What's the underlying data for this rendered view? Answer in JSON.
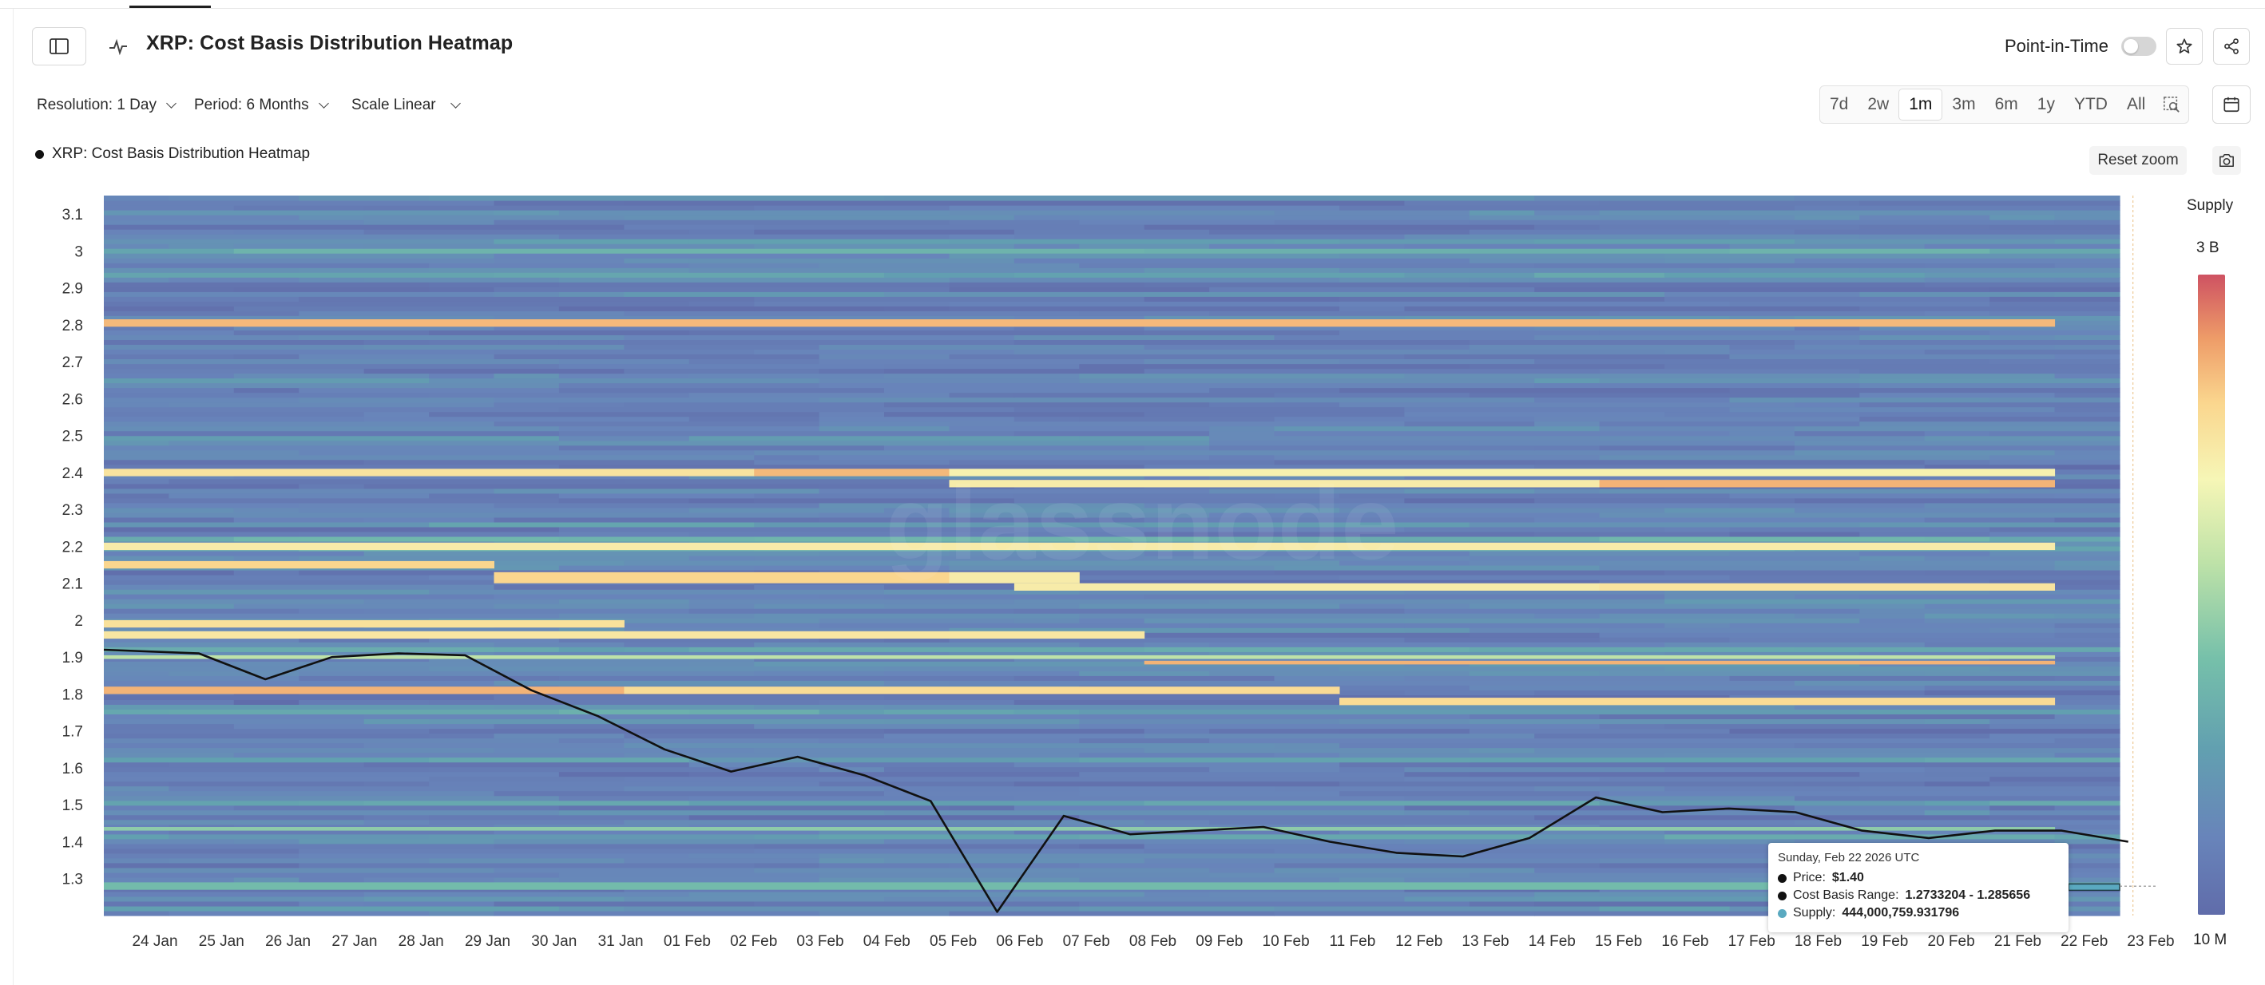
{
  "header": {
    "title": "XRP: Cost Basis Distribution Heatmap",
    "point_in_time_label": "Point-in-Time",
    "point_in_time_on": false
  },
  "controls": {
    "resolution": "Resolution: 1 Day",
    "period": "Period: 6 Months",
    "scale": "Scale Linear",
    "ranges": [
      "7d",
      "2w",
      "1m",
      "3m",
      "6m",
      "1y",
      "YTD",
      "All"
    ],
    "active_range": "1m"
  },
  "legend": {
    "series_label": "XRP: Cost Basis Distribution Heatmap"
  },
  "buttons": {
    "reset_zoom": "Reset zoom"
  },
  "colorbar": {
    "title": "Supply",
    "max_label": "3 B",
    "min_label": "10 M"
  },
  "watermark": "glassnode",
  "tooltip": {
    "date": "Sunday, Feb 22 2026 UTC",
    "price_label": "Price:",
    "price_value": "$1.40",
    "range_label": "Cost Basis Range:",
    "range_value": "1.2733204 - 1.285656",
    "supply_label": "Supply:",
    "supply_value": "444,000,759.931796"
  },
  "chart_data": {
    "type": "heatmap",
    "title": "XRP: Cost Basis Distribution Heatmap",
    "x_categories": [
      "24 Jan",
      "25 Jan",
      "26 Jan",
      "27 Jan",
      "28 Jan",
      "29 Jan",
      "30 Jan",
      "31 Jan",
      "01 Feb",
      "02 Feb",
      "03 Feb",
      "04 Feb",
      "05 Feb",
      "06 Feb",
      "07 Feb",
      "08 Feb",
      "09 Feb",
      "10 Feb",
      "11 Feb",
      "12 Feb",
      "13 Feb",
      "14 Feb",
      "15 Feb",
      "16 Feb",
      "17 Feb",
      "18 Feb",
      "19 Feb",
      "20 Feb",
      "21 Feb",
      "22 Feb",
      "23 Feb"
    ],
    "y_ticks": [
      1.3,
      1.4,
      1.5,
      1.6,
      1.7,
      1.8,
      1.9,
      2.0,
      2.1,
      2.2,
      2.3,
      2.4,
      2.5,
      2.6,
      2.7,
      2.8,
      2.9,
      3.0,
      3.1
    ],
    "y_tick_labels": [
      "1.3",
      "1.4",
      "1.5",
      "1.6",
      "1.7",
      "1.8",
      "1.9",
      "2",
      "2.1",
      "2.2",
      "2.3",
      "2.4",
      "2.5",
      "2.6",
      "2.7",
      "2.8",
      "2.9",
      "3",
      "3.1"
    ],
    "ylim": [
      1.2,
      3.15
    ],
    "colorscale": {
      "label": "Supply",
      "min": "10 M",
      "max": "3 B"
    },
    "price_series": {
      "name": "Price",
      "x": [
        "23 Jan",
        "24 Jan",
        "25 Jan",
        "26 Jan",
        "27 Jan",
        "28 Jan",
        "29 Jan",
        "30 Jan",
        "31 Jan",
        "01 Feb",
        "02 Feb",
        "03 Feb",
        "04 Feb",
        "05 Feb",
        "06 Feb",
        "07 Feb",
        "08 Feb",
        "09 Feb",
        "10 Feb",
        "11 Feb",
        "12 Feb",
        "13 Feb",
        "14 Feb",
        "15 Feb",
        "16 Feb",
        "17 Feb",
        "18 Feb",
        "19 Feb",
        "20 Feb",
        "21 Feb",
        "22 Feb"
      ],
      "values": [
        1.92,
        1.91,
        1.84,
        1.9,
        1.91,
        1.905,
        1.81,
        1.74,
        1.65,
        1.59,
        1.63,
        1.58,
        1.51,
        1.21,
        1.47,
        1.42,
        1.43,
        1.44,
        1.4,
        1.37,
        1.36,
        1.41,
        1.52,
        1.48,
        1.49,
        1.48,
        1.43,
        1.41,
        1.43,
        1.43,
        1.4
      ]
    },
    "high_supply_bands": [
      {
        "from": 1.895,
        "to": 1.905,
        "segments": [
          {
            "x0": 0,
            "x1": 30,
            "v": 0.55
          }
        ]
      },
      {
        "from": 2.795,
        "to": 2.815,
        "segments": [
          {
            "x0": 0,
            "x1": 30,
            "v": 0.85
          }
        ]
      },
      {
        "from": 2.39,
        "to": 2.41,
        "segments": [
          {
            "x0": 0,
            "x1": 10,
            "v": 0.75
          },
          {
            "x0": 10,
            "x1": 13,
            "v": 0.85
          },
          {
            "x0": 13,
            "x1": 30,
            "v": 0.7
          }
        ]
      },
      {
        "from": 2.36,
        "to": 2.38,
        "segments": [
          {
            "x0": 13,
            "x1": 23,
            "v": 0.72
          },
          {
            "x0": 23,
            "x1": 30,
            "v": 0.86
          }
        ]
      },
      {
        "from": 2.19,
        "to": 2.21,
        "segments": [
          {
            "x0": 0,
            "x1": 30,
            "v": 0.72
          }
        ]
      },
      {
        "from": 2.14,
        "to": 2.16,
        "segments": [
          {
            "x0": 0,
            "x1": 6,
            "v": 0.8
          }
        ]
      },
      {
        "from": 2.1,
        "to": 2.13,
        "segments": [
          {
            "x0": 6,
            "x1": 13,
            "v": 0.8
          },
          {
            "x0": 13,
            "x1": 15,
            "v": 0.72
          }
        ]
      },
      {
        "from": 2.08,
        "to": 2.1,
        "segments": [
          {
            "x0": 14,
            "x1": 23,
            "v": 0.72
          },
          {
            "x0": 23,
            "x1": 30,
            "v": 0.75
          }
        ]
      },
      {
        "from": 1.98,
        "to": 2.0,
        "segments": [
          {
            "x0": 0,
            "x1": 8,
            "v": 0.76
          }
        ]
      },
      {
        "from": 1.95,
        "to": 1.97,
        "segments": [
          {
            "x0": 0,
            "x1": 16,
            "v": 0.74
          }
        ]
      },
      {
        "from": 1.88,
        "to": 1.89,
        "segments": [
          {
            "x0": 16,
            "x1": 30,
            "v": 0.86
          }
        ]
      },
      {
        "from": 1.8,
        "to": 1.82,
        "segments": [
          {
            "x0": 0,
            "x1": 8,
            "v": 0.86
          },
          {
            "x0": 8,
            "x1": 19,
            "v": 0.78
          }
        ]
      },
      {
        "from": 1.77,
        "to": 1.79,
        "segments": [
          {
            "x0": 19,
            "x1": 30,
            "v": 0.78
          }
        ]
      },
      {
        "from": 1.43,
        "to": 1.44,
        "segments": [
          {
            "x0": 0,
            "x1": 30,
            "v": 0.45
          }
        ]
      },
      {
        "from": 1.27,
        "to": 1.29,
        "segments": [
          {
            "x0": 0,
            "x1": 30,
            "v": 0.38
          }
        ]
      }
    ]
  }
}
